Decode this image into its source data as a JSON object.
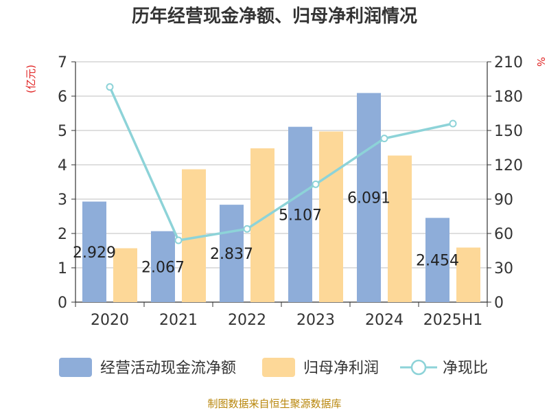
{
  "chart_data": {
    "type": "bar+line",
    "title": "历年经营现金净额、归母净利润情况",
    "categories": [
      "2020",
      "2021",
      "2022",
      "2023",
      "2024",
      "2025H1"
    ],
    "y_left": {
      "unit": "(亿元)",
      "ylim": [
        0,
        7
      ],
      "ticks": [
        "0",
        "1",
        "2",
        "3",
        "4",
        "5",
        "6",
        "7"
      ]
    },
    "y_right": {
      "unit": "%",
      "ylim": [
        0,
        210
      ],
      "ticks": [
        "0",
        "30",
        "60",
        "90",
        "120",
        "150",
        "180",
        "210"
      ]
    },
    "series": [
      {
        "name": "经营活动现金流净额",
        "kind": "bar",
        "axis": "left",
        "color": "#8eadd9",
        "values": [
          2.929,
          2.067,
          2.837,
          5.107,
          6.091,
          2.454
        ],
        "labels": [
          "2.929",
          "2.067",
          "2.837",
          "5.107",
          "6.091",
          "2.454"
        ]
      },
      {
        "name": "归母净利润",
        "kind": "bar",
        "axis": "left",
        "color": "#fdd898",
        "values": [
          1.57,
          3.87,
          4.48,
          4.97,
          4.27,
          1.59
        ]
      },
      {
        "name": "净现比",
        "kind": "line",
        "axis": "right",
        "color": "#8dd3d8",
        "values": [
          188,
          54,
          64,
          103,
          143,
          156
        ]
      }
    ],
    "grid": true,
    "legend": "bottom"
  },
  "source": "制图数据来自恒生聚源数据库"
}
